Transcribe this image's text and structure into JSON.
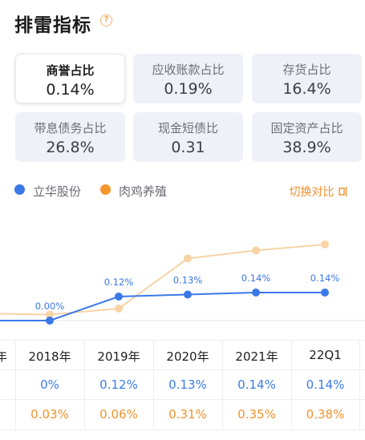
{
  "header": {
    "title": "排雷指标",
    "help_glyph": "?"
  },
  "metrics": [
    {
      "label": "商誉占比",
      "value": "0.14%",
      "active": true
    },
    {
      "label": "应收账款占比",
      "value": "0.19%",
      "active": false
    },
    {
      "label": "存货占比",
      "value": "16.4%",
      "active": false
    },
    {
      "label": "带息债务占比",
      "value": "26.8%",
      "active": false
    },
    {
      "label": "现金短债比",
      "value": "0.31",
      "active": false
    },
    {
      "label": "固定资产占比",
      "value": "38.9%",
      "active": false
    }
  ],
  "legend": {
    "company": "立华股份",
    "peer": "肉鸡养殖",
    "switch_label": "切换对比",
    "company_color": "#3b78e7",
    "peer_color": "#f7962c",
    "peer_line_color": "#f8d3a6"
  },
  "chart_data": {
    "type": "line",
    "categories": [
      "2018年",
      "2019年",
      "2020年",
      "2021年",
      "22Q1"
    ],
    "series": [
      {
        "name": "立华股份",
        "values": [
          0.0,
          0.12,
          0.13,
          0.14,
          0.14
        ],
        "labels": [
          "0.00%",
          "0.12%",
          "0.13%",
          "0.14%",
          "0.14%"
        ]
      },
      {
        "name": "肉鸡养殖",
        "values": [
          0.03,
          0.06,
          0.31,
          0.35,
          0.38
        ]
      }
    ],
    "ylim": [
      0,
      0.4
    ]
  },
  "table": {
    "partial_header": "年",
    "headers": [
      "2018年",
      "2019年",
      "2020年",
      "2021年",
      "22Q1"
    ],
    "company_values": [
      "0%",
      "0.12%",
      "0.13%",
      "0.14%",
      "0.14%"
    ],
    "peer_values": [
      "0.03%",
      "0.06%",
      "0.31%",
      "0.35%",
      "0.38%"
    ]
  }
}
